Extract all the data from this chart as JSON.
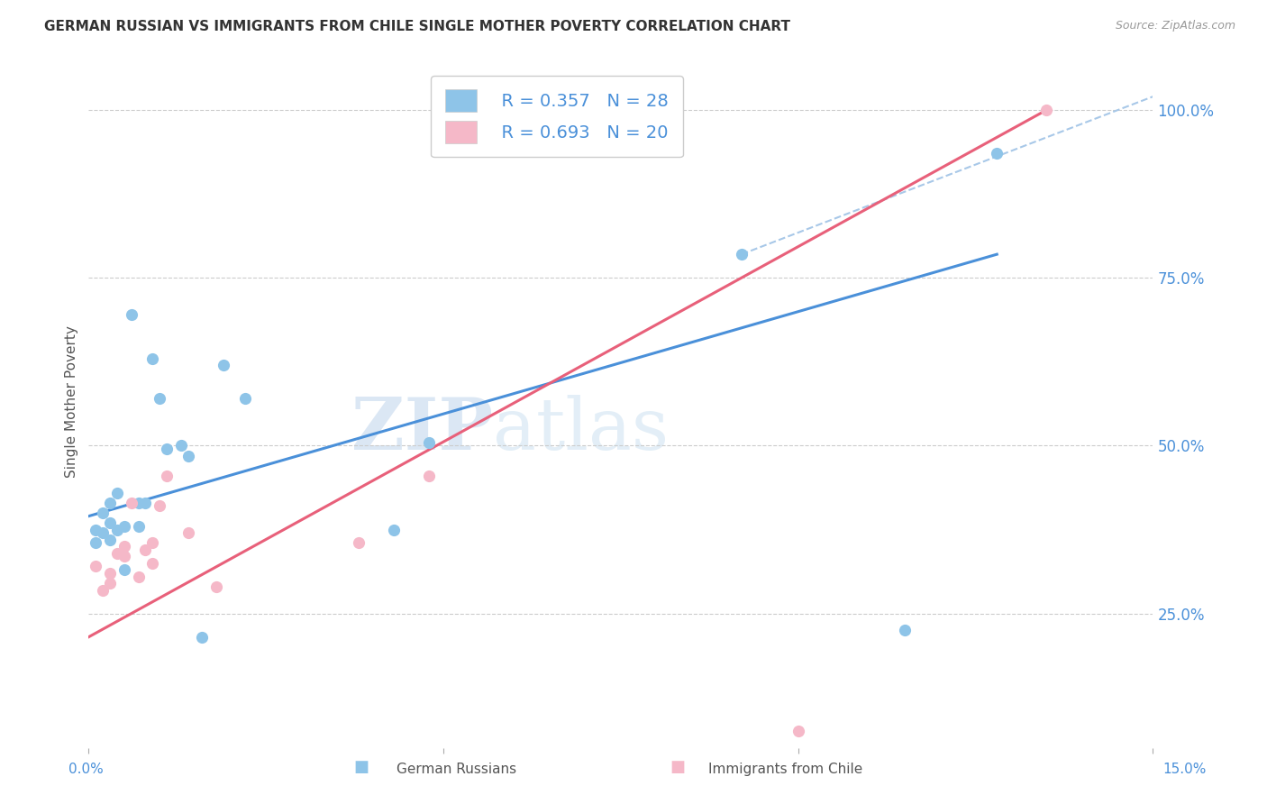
{
  "title": "GERMAN RUSSIAN VS IMMIGRANTS FROM CHILE SINGLE MOTHER POVERTY CORRELATION CHART",
  "source": "Source: ZipAtlas.com",
  "ylabel": "Single Mother Poverty",
  "y_ticks": [
    0.25,
    0.5,
    0.75,
    1.0
  ],
  "y_tick_labels": [
    "25.0%",
    "50.0%",
    "75.0%",
    "100.0%"
  ],
  "xmin": 0.0,
  "xmax": 0.15,
  "ymin": 0.05,
  "ymax": 1.08,
  "legend_r1": "R = 0.357",
  "legend_n1": "N = 28",
  "legend_r2": "R = 0.693",
  "legend_n2": "N = 20",
  "legend_label1": "German Russians",
  "legend_label2": "Immigrants from Chile",
  "blue_color": "#8ec4e8",
  "pink_color": "#f5b8c8",
  "blue_line_color": "#4a90d9",
  "pink_line_color": "#e8607a",
  "dashed_line_color": "#a8c8e8",
  "watermark_zip": "ZIP",
  "watermark_atlas": "atlas",
  "german_russian_x": [
    0.001,
    0.001,
    0.002,
    0.002,
    0.003,
    0.003,
    0.003,
    0.004,
    0.004,
    0.005,
    0.005,
    0.006,
    0.007,
    0.007,
    0.008,
    0.009,
    0.01,
    0.011,
    0.013,
    0.014,
    0.016,
    0.019,
    0.022,
    0.043,
    0.048,
    0.092,
    0.115,
    0.128
  ],
  "german_russian_y": [
    0.355,
    0.375,
    0.37,
    0.4,
    0.36,
    0.385,
    0.415,
    0.375,
    0.43,
    0.315,
    0.38,
    0.695,
    0.38,
    0.415,
    0.415,
    0.63,
    0.57,
    0.495,
    0.5,
    0.485,
    0.215,
    0.62,
    0.57,
    0.375,
    0.505,
    0.785,
    0.225,
    0.935
  ],
  "chile_x": [
    0.001,
    0.002,
    0.003,
    0.003,
    0.004,
    0.005,
    0.005,
    0.006,
    0.007,
    0.008,
    0.009,
    0.009,
    0.01,
    0.011,
    0.014,
    0.018,
    0.038,
    0.048,
    0.1,
    0.135
  ],
  "chile_y": [
    0.32,
    0.285,
    0.295,
    0.31,
    0.34,
    0.335,
    0.35,
    0.415,
    0.305,
    0.345,
    0.355,
    0.325,
    0.41,
    0.455,
    0.37,
    0.29,
    0.355,
    0.455,
    0.075,
    1.0
  ],
  "gr_line_x": [
    0.0,
    0.128
  ],
  "gr_line_y": [
    0.395,
    0.785
  ],
  "chile_line_x": [
    0.0,
    0.135
  ],
  "chile_line_y": [
    0.215,
    1.0
  ],
  "dashed_line_x": [
    0.092,
    0.15
  ],
  "dashed_line_y": [
    0.785,
    1.02
  ]
}
